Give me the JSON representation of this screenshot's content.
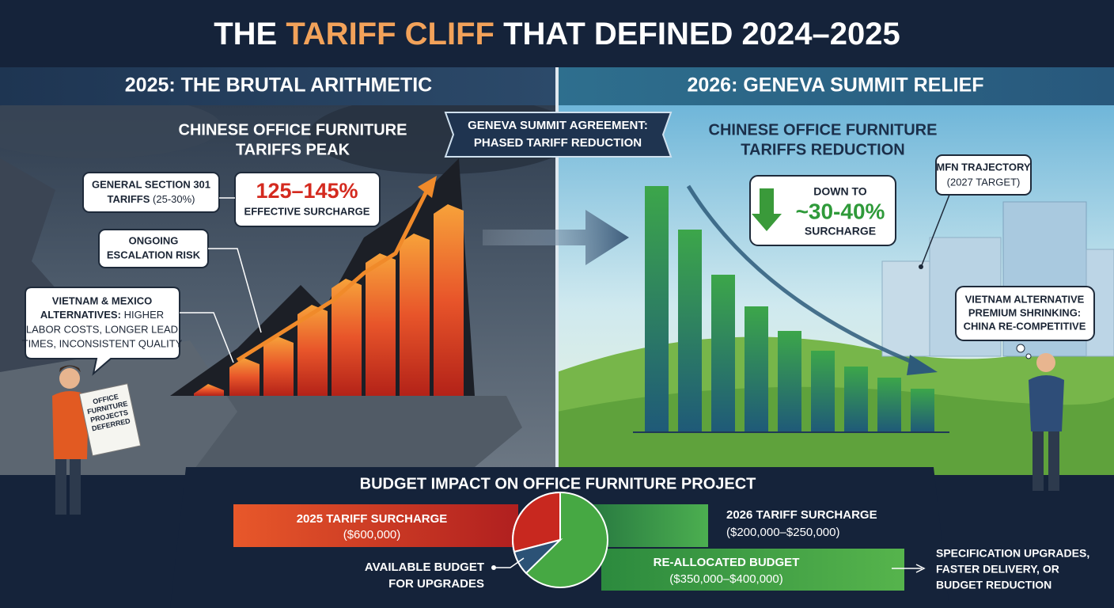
{
  "title": {
    "lead": "THE",
    "highlight": "TARIFF CLIFF",
    "tail": "THAT DEFINED 2024–2025"
  },
  "left_panel": {
    "header": "2025: THE BRUTAL ARITHMETIC",
    "heading": [
      "CHINESE OFFICE FURNITURE",
      "TARIFFS PEAK"
    ],
    "section_301": {
      "line1": "GENERAL SECTION 301",
      "bold": "TARIFFS",
      "normal": "(25-30%)"
    },
    "surcharge": {
      "value": "125–145%",
      "label": "EFFECTIVE SURCHARGE"
    },
    "escalation": [
      "ONGOING",
      "ESCALATION RISK"
    ],
    "alternatives": {
      "line1": "VIETNAM & MEXICO",
      "bold": "ALTERNATIVES:",
      "normal": "HIGHER",
      "lines": [
        "LABOR COSTS, LONGER LEAD",
        "TIMES, INCONSISTENT QUALITY"
      ]
    },
    "sign": [
      "OFFICE",
      "FURNITURE",
      "PROJECTS",
      "DEFERRED"
    ]
  },
  "banner": [
    "GENEVA SUMMIT AGREEMENT:",
    "PHASED TARIFF REDUCTION"
  ],
  "right_panel": {
    "header": "2026: GENEVA SUMMIT RELIEF",
    "heading": [
      "CHINESE OFFICE FURNITURE",
      "TARIFFS REDUCTION"
    ],
    "reduction": {
      "prefix": "DOWN TO",
      "value": "~30-40%",
      "label": "SURCHARGE"
    },
    "mfn": {
      "title": "MFN TRAJECTORY",
      "note": "(2027 TARGET)"
    },
    "vietnam": [
      "VIETNAM ALTERNATIVE",
      "PREMIUM SHRINKING:",
      "CHINA RE-COMPETITIVE"
    ]
  },
  "budget": {
    "title": "BUDGET IMPACT ON OFFICE FURNITURE PROJECT",
    "surcharge_2025": {
      "label": "2025 TARIFF SURCHARGE",
      "amount": "($600,000)"
    },
    "surcharge_2026": {
      "label": "2026 TARIFF SURCHARGE",
      "amount": "($200,000–$250,000)"
    },
    "available": [
      "AVAILABLE BUDGET",
      "FOR UPGRADES"
    ],
    "reallocated": {
      "label": "RE-ALLOCATED BUDGET",
      "amount": "($350,000–$400,000)"
    },
    "outcomes": [
      "SPECIFICATION UPGRADES,",
      "FASTER DELIVERY, OR",
      "BUDGET REDUCTION"
    ]
  }
}
